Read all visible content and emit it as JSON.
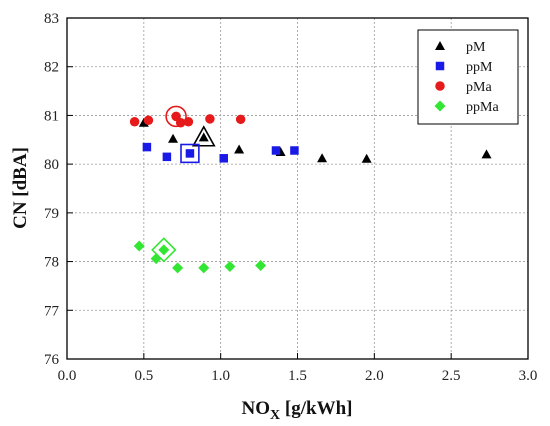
{
  "chart_data": {
    "type": "scatter",
    "title": "",
    "xlabel_main": "NO",
    "xlabel_sub": "X",
    "xlabel_unit": " [g/kWh]",
    "ylabel": "CN [dBA]",
    "xlim": [
      0.0,
      3.0
    ],
    "ylim": [
      76,
      83
    ],
    "x_ticks": [
      "0.0",
      "0.5",
      "1.0",
      "1.5",
      "2.0",
      "2.5",
      "3.0"
    ],
    "y_ticks": [
      "76",
      "77",
      "78",
      "79",
      "80",
      "81",
      "82",
      "83"
    ],
    "grid": true,
    "legend_position": "top-right",
    "series": [
      {
        "name": "pM",
        "marker": "triangle",
        "color": "#000000",
        "points": [
          [
            0.5,
            80.85
          ],
          [
            0.69,
            80.52
          ],
          [
            1.12,
            80.3
          ],
          [
            1.39,
            80.25
          ],
          [
            1.66,
            80.12
          ],
          [
            1.95,
            80.11
          ],
          [
            2.73,
            80.2
          ]
        ],
        "highlight": [
          0.89,
          80.55
        ]
      },
      {
        "name": "ppM",
        "marker": "square",
        "color": "#1a1ae6",
        "points": [
          [
            0.52,
            80.35
          ],
          [
            0.65,
            80.15
          ],
          [
            1.02,
            80.12
          ],
          [
            1.36,
            80.28
          ],
          [
            1.48,
            80.28
          ]
        ],
        "highlight": [
          0.8,
          80.22
        ]
      },
      {
        "name": "pMa",
        "marker": "circle",
        "color": "#e61a1a",
        "points": [
          [
            0.44,
            80.87
          ],
          [
            0.53,
            80.9
          ],
          [
            0.74,
            80.85
          ],
          [
            0.79,
            80.87
          ],
          [
            0.93,
            80.93
          ],
          [
            1.13,
            80.92
          ]
        ],
        "highlight": [
          0.71,
          80.98
        ]
      },
      {
        "name": "ppMa",
        "marker": "diamond",
        "color": "#33e633",
        "points": [
          [
            0.47,
            78.32
          ],
          [
            0.58,
            78.06
          ],
          [
            0.72,
            77.87
          ],
          [
            0.89,
            77.87
          ],
          [
            1.06,
            77.9
          ],
          [
            1.26,
            77.92
          ]
        ],
        "highlight": [
          0.63,
          78.24
        ]
      }
    ]
  }
}
